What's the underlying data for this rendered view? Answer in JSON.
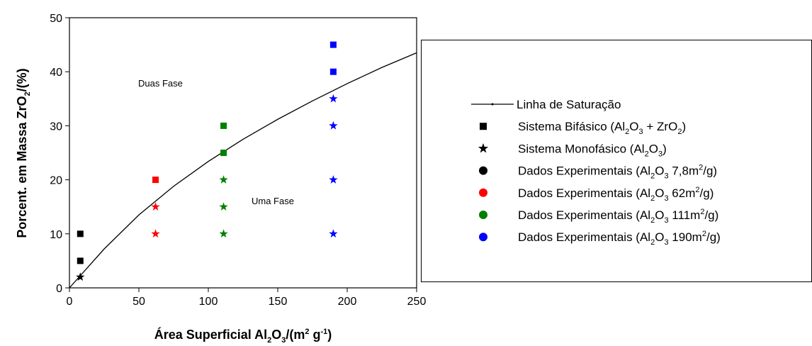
{
  "chart_data": {
    "type": "scatter",
    "x_label": "Área Superficial Al2O3/(m2 g-1)",
    "y_label": "Porcent. em Massa ZrO2/(%)",
    "xlim": [
      0,
      250
    ],
    "xticks": [
      0,
      50,
      100,
      150,
      200,
      250
    ],
    "ylim": [
      0,
      50
    ],
    "yticks": [
      0,
      10,
      20,
      30,
      40,
      50
    ],
    "annotations": [
      "Duas Fase",
      "Uma Fase"
    ],
    "series": [
      {
        "marker": "line",
        "color": "#000000",
        "x": [
          0,
          25,
          50,
          75,
          100,
          125,
          150,
          175,
          200,
          225,
          250
        ],
        "values": [
          0,
          7.2,
          13.5,
          18.8,
          23.4,
          27.5,
          31.2,
          34.6,
          37.8,
          40.8,
          43.5
        ]
      },
      {
        "marker": "square",
        "color": "#000000",
        "x": [
          7.8,
          7.8
        ],
        "values": [
          10,
          5
        ]
      },
      {
        "marker": "star",
        "color": "#000000",
        "x": [
          7.8
        ],
        "values": [
          2
        ]
      },
      {
        "marker": "square",
        "color": "#ff0000",
        "x": [
          62
        ],
        "values": [
          20
        ]
      },
      {
        "marker": "star",
        "color": "#ff0000",
        "x": [
          62,
          62
        ],
        "values": [
          15,
          10
        ]
      },
      {
        "marker": "square",
        "color": "#008000",
        "x": [
          111,
          111
        ],
        "values": [
          30,
          25
        ]
      },
      {
        "marker": "star",
        "color": "#008000",
        "x": [
          111,
          111,
          111
        ],
        "values": [
          20,
          15,
          10
        ]
      },
      {
        "marker": "square",
        "color": "#0000ff",
        "x": [
          190,
          190
        ],
        "values": [
          45,
          40
        ]
      },
      {
        "marker": "star",
        "color": "#0000ff",
        "x": [
          190,
          190,
          190,
          190
        ],
        "values": [
          35,
          30,
          20,
          10
        ]
      }
    ],
    "legend": [
      {
        "name": "Linha de Saturação",
        "marker": "line",
        "color": "#000000"
      },
      {
        "name": "Sistema Bifásico (Al2O3 + ZrO2)",
        "marker": "square",
        "color": "#000000"
      },
      {
        "name": "Sistema Monofásico (Al2O3)",
        "marker": "star",
        "color": "#000000"
      },
      {
        "name": "Dados Experimentais (Al2O3 7,8m2/g)",
        "marker": "circle",
        "color": "#000000"
      },
      {
        "name": "Dados Experimentais (Al2O3 62m2/g)",
        "marker": "circle",
        "color": "#ff0000"
      },
      {
        "name": "Dados Experimentais (Al2O3 111m2/g)",
        "marker": "circle",
        "color": "#008000"
      },
      {
        "name": "Dados Experimentais (Al2O3 190m2/g)",
        "marker": "circle",
        "color": "#0000ff"
      }
    ]
  }
}
